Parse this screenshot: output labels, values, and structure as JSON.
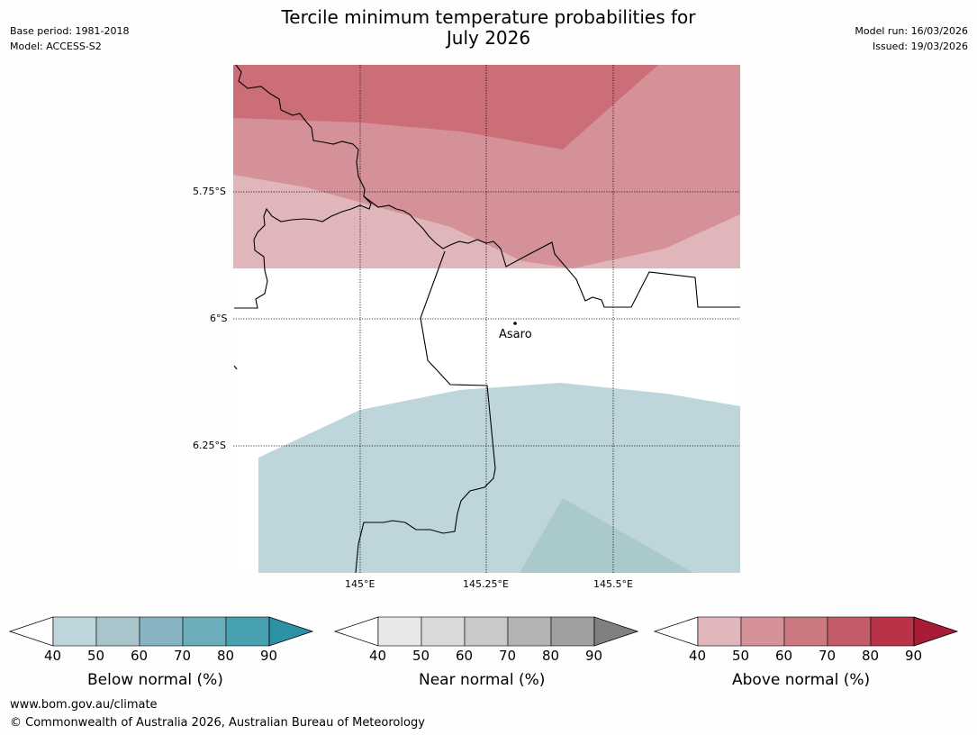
{
  "title_line1": "Tercile minimum temperature probabilities for",
  "title_line2": "July 2026",
  "base_period": "Base period: 1981-2018",
  "model": "Model: ACCESS-S2",
  "model_run": "Model run: 16/03/2026",
  "issued": "Issued: 19/03/2026",
  "map": {
    "lat_labels": [
      "5.75°S",
      "6°S",
      "6.25°S"
    ],
    "lon_labels": [
      "145°E",
      "145.25°E",
      "145.5°E"
    ],
    "place": "Asaro"
  },
  "colorbars": [
    {
      "title": "Below normal (%)",
      "ticks": [
        "40",
        "50",
        "60",
        "70",
        "80",
        "90"
      ],
      "colors": [
        "#bfd5dc",
        "#a7c5cb",
        "#88b4c2",
        "#6badbb",
        "#47a0b0",
        "#2d92a3"
      ]
    },
    {
      "title": "Near normal (%)",
      "ticks": [
        "40",
        "50",
        "60",
        "70",
        "80",
        "90"
      ],
      "colors": [
        "#e8e8e8",
        "#d9d9d9",
        "#c9c9c9",
        "#b3b3b3",
        "#9f9f9f",
        "#808080"
      ]
    },
    {
      "title": "Above normal (%)",
      "ticks": [
        "40",
        "50",
        "60",
        "70",
        "80",
        "90"
      ],
      "colors": [
        "#e0b6bb",
        "#d59198",
        "#cc7880",
        "#c45b68",
        "#b83248",
        "#a81c36"
      ]
    }
  ],
  "footer_url": "www.bom.gov.au/climate",
  "footer_copyright": "© Commonwealth of Australia 2026, Australian Bureau of Meteorology"
}
